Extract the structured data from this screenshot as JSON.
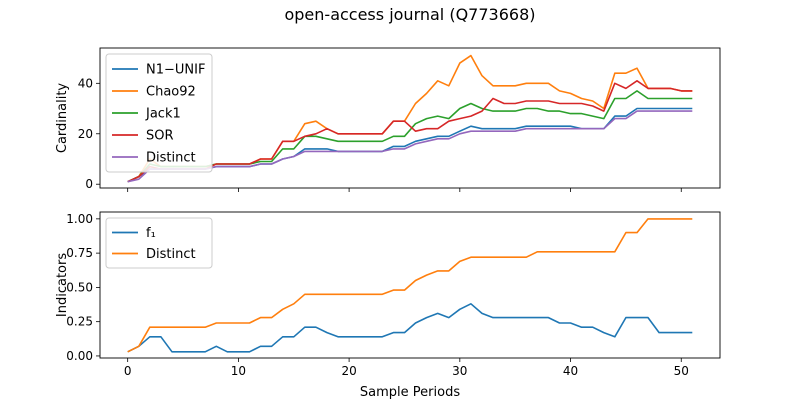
{
  "figure": {
    "title": "open-access journal (Q773668)",
    "xlabel": "Sample Periods"
  },
  "chart_data": [
    {
      "type": "line",
      "ylabel": "Cardinality",
      "xlim": [
        -2.5,
        53.5
      ],
      "ylim": [
        -1.5,
        54
      ],
      "xticks": [
        0,
        10,
        20,
        30,
        40,
        50
      ],
      "xtick_labels_visible": false,
      "yticks": [
        0,
        20,
        40
      ],
      "grid": false,
      "legend": "top-left",
      "x": [
        0,
        1,
        2,
        3,
        4,
        5,
        6,
        7,
        8,
        9,
        10,
        11,
        12,
        13,
        14,
        15,
        16,
        17,
        18,
        19,
        20,
        21,
        22,
        23,
        24,
        25,
        26,
        27,
        28,
        29,
        30,
        31,
        32,
        33,
        34,
        35,
        36,
        37,
        38,
        39,
        40,
        41,
        42,
        43,
        44,
        45,
        46,
        47,
        48,
        49,
        50,
        51
      ],
      "series": [
        {
          "name": "N1−UNIF",
          "color": "#1f77b4",
          "values": [
            1,
            3,
            6,
            6,
            6,
            6,
            6,
            6,
            7,
            7,
            7,
            7,
            8,
            8,
            10,
            11,
            14,
            14,
            14,
            13,
            13,
            13,
            13,
            13,
            15,
            15,
            17,
            18,
            19,
            19,
            21,
            23,
            22,
            22,
            22,
            22,
            23,
            23,
            23,
            23,
            23,
            22,
            22,
            22,
            27,
            27,
            30,
            30,
            30,
            30,
            30,
            30
          ]
        },
        {
          "name": "Chao92",
          "color": "#ff7f0e",
          "values": [
            1,
            3,
            10,
            7,
            7,
            7,
            7,
            7,
            8,
            8,
            8,
            8,
            10,
            10,
            17,
            17,
            24,
            25,
            22,
            20,
            20,
            20,
            20,
            20,
            25,
            25,
            32,
            36,
            41,
            39,
            48,
            51,
            43,
            39,
            39,
            39,
            40,
            40,
            40,
            37,
            36,
            34,
            33,
            30,
            44,
            44,
            46,
            38,
            38,
            38,
            37,
            37
          ]
        },
        {
          "name": "Jack1",
          "color": "#2ca02c",
          "values": [
            1,
            3,
            8,
            7,
            7,
            7,
            7,
            7,
            8,
            8,
            8,
            8,
            9,
            9,
            14,
            14,
            19,
            19,
            18,
            17,
            17,
            17,
            17,
            17,
            19,
            19,
            24,
            26,
            27,
            26,
            30,
            32,
            30,
            29,
            29,
            29,
            30,
            30,
            29,
            29,
            28,
            28,
            27,
            26,
            34,
            34,
            37,
            34,
            34,
            34,
            34,
            34
          ]
        },
        {
          "name": "SOR",
          "color": "#d62728",
          "values": [
            1,
            3,
            7,
            6,
            6,
            6,
            6,
            6,
            8,
            8,
            8,
            8,
            10,
            10,
            17,
            17,
            19,
            20,
            22,
            20,
            20,
            20,
            20,
            20,
            25,
            25,
            21,
            22,
            22,
            25,
            26,
            27,
            29,
            34,
            32,
            32,
            33,
            33,
            33,
            32,
            32,
            32,
            31,
            29,
            40,
            38,
            41,
            38,
            38,
            38,
            37,
            37
          ]
        },
        {
          "name": "Distinct",
          "color": "#9467bd",
          "values": [
            1,
            2,
            6,
            6,
            6,
            6,
            6,
            6,
            7,
            7,
            7,
            7,
            8,
            8,
            10,
            11,
            13,
            13,
            13,
            13,
            13,
            13,
            13,
            13,
            14,
            14,
            16,
            17,
            18,
            18,
            20,
            21,
            21,
            21,
            21,
            21,
            22,
            22,
            22,
            22,
            22,
            22,
            22,
            22,
            26,
            26,
            29,
            29,
            29,
            29,
            29,
            29
          ]
        }
      ]
    },
    {
      "type": "line",
      "ylabel": "Indicators",
      "xlim": [
        -2.5,
        53.5
      ],
      "ylim": [
        -0.015,
        1.05
      ],
      "xticks": [
        0,
        10,
        20,
        30,
        40,
        50
      ],
      "yticks": [
        0.0,
        0.25,
        0.5,
        0.75,
        1.0
      ],
      "ytick_labels": [
        "0.00",
        "0.25",
        "0.50",
        "0.75",
        "1.00"
      ],
      "grid": false,
      "legend": "top-left",
      "x": [
        0,
        1,
        2,
        3,
        4,
        5,
        6,
        7,
        8,
        9,
        10,
        11,
        12,
        13,
        14,
        15,
        16,
        17,
        18,
        19,
        20,
        21,
        22,
        23,
        24,
        25,
        26,
        27,
        28,
        29,
        30,
        31,
        32,
        33,
        34,
        35,
        36,
        37,
        38,
        39,
        40,
        41,
        42,
        43,
        44,
        45,
        46,
        47,
        48,
        49,
        50,
        51
      ],
      "series": [
        {
          "name": "f₁",
          "color": "#1f77b4",
          "values": [
            0.03,
            0.07,
            0.14,
            0.14,
            0.03,
            0.03,
            0.03,
            0.03,
            0.07,
            0.03,
            0.03,
            0.03,
            0.07,
            0.07,
            0.14,
            0.14,
            0.21,
            0.21,
            0.17,
            0.14,
            0.14,
            0.14,
            0.14,
            0.14,
            0.17,
            0.17,
            0.24,
            0.28,
            0.31,
            0.28,
            0.34,
            0.38,
            0.31,
            0.28,
            0.28,
            0.28,
            0.28,
            0.28,
            0.28,
            0.24,
            0.24,
            0.21,
            0.21,
            0.17,
            0.14,
            0.28,
            0.28,
            0.28,
            0.17,
            0.17,
            0.17,
            0.17
          ]
        },
        {
          "name": "Distinct",
          "color": "#ff7f0e",
          "values": [
            0.03,
            0.07,
            0.21,
            0.21,
            0.21,
            0.21,
            0.21,
            0.21,
            0.24,
            0.24,
            0.24,
            0.24,
            0.28,
            0.28,
            0.34,
            0.38,
            0.45,
            0.45,
            0.45,
            0.45,
            0.45,
            0.45,
            0.45,
            0.45,
            0.48,
            0.48,
            0.55,
            0.59,
            0.62,
            0.62,
            0.69,
            0.72,
            0.72,
            0.72,
            0.72,
            0.72,
            0.72,
            0.76,
            0.76,
            0.76,
            0.76,
            0.76,
            0.76,
            0.76,
            0.76,
            0.9,
            0.9,
            1.0,
            1.0,
            1.0,
            1.0,
            1.0
          ]
        }
      ]
    }
  ]
}
